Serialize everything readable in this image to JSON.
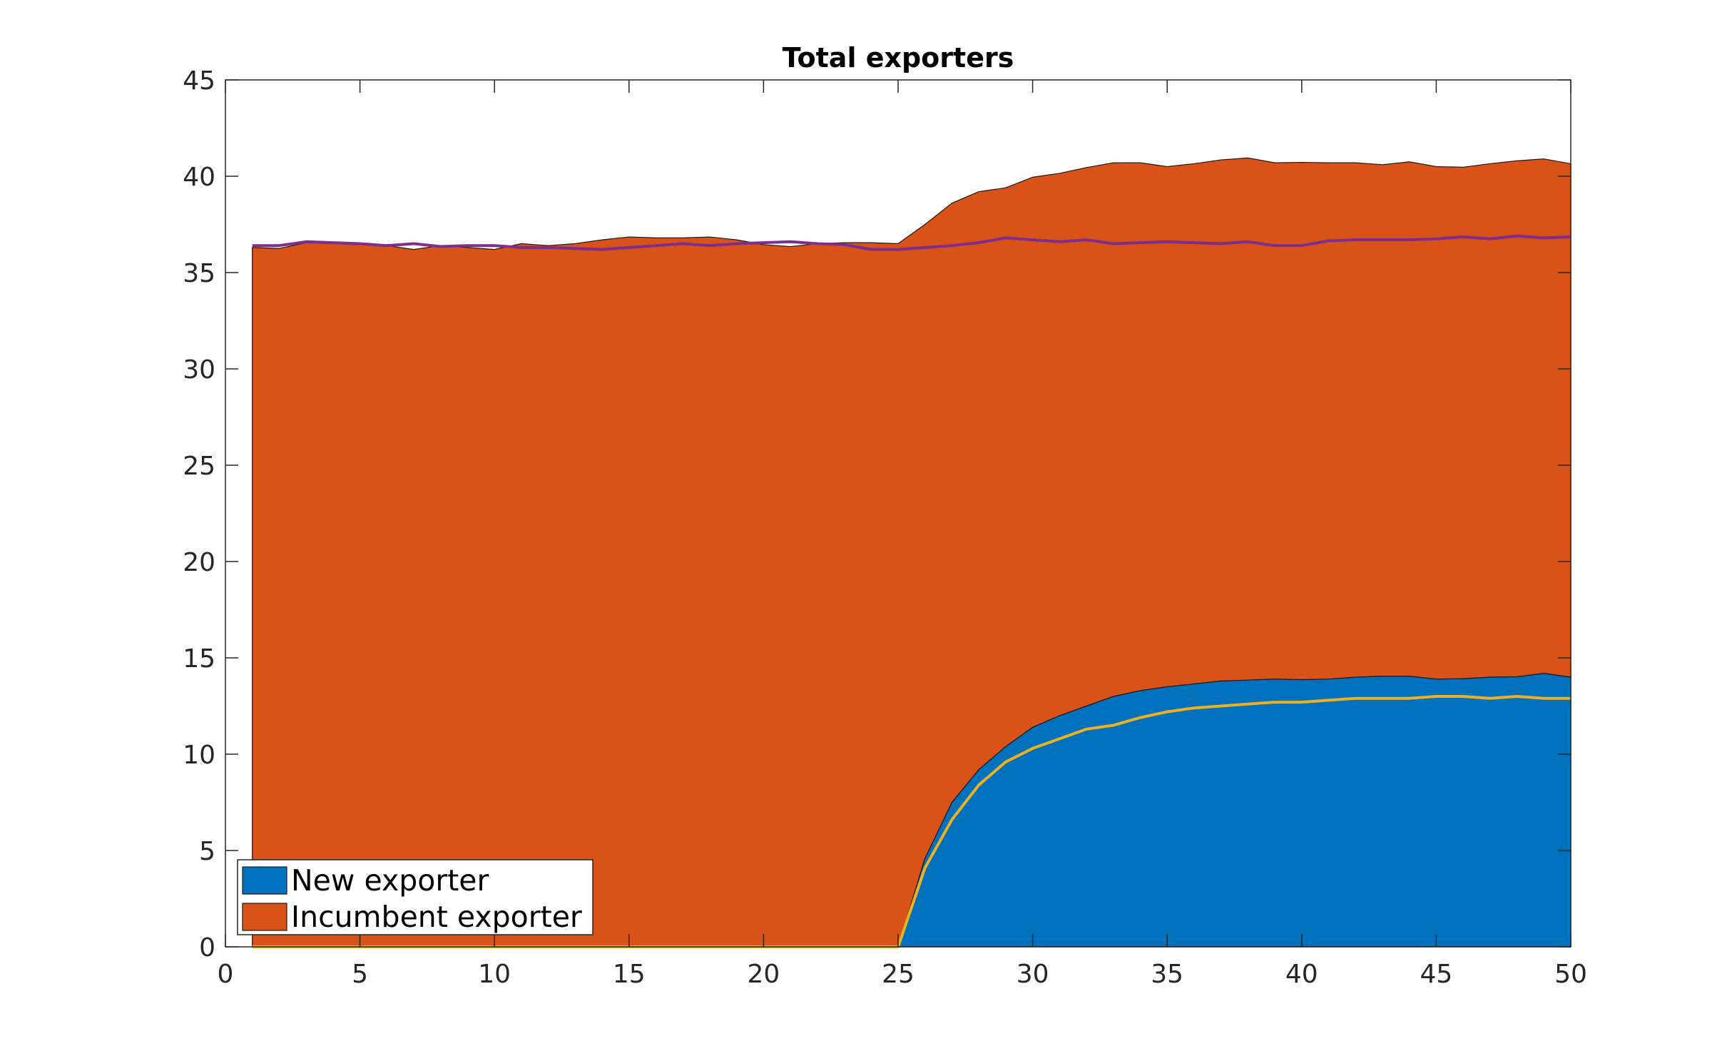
{
  "chart_data": {
    "type": "area",
    "title": "Total exporters",
    "xlabel": "",
    "ylabel": "",
    "xlim": [
      0,
      50
    ],
    "ylim": [
      0,
      45
    ],
    "xticks": [
      0,
      5,
      10,
      15,
      20,
      25,
      30,
      35,
      40,
      45,
      50
    ],
    "yticks": [
      0,
      5,
      10,
      15,
      20,
      25,
      30,
      35,
      40,
      45
    ],
    "grid": false,
    "legend_position": "bottom-left",
    "stacked": true,
    "x": [
      1,
      2,
      3,
      4,
      5,
      6,
      7,
      8,
      9,
      10,
      11,
      12,
      13,
      14,
      15,
      16,
      17,
      18,
      19,
      20,
      21,
      22,
      23,
      24,
      25,
      26,
      27,
      28,
      29,
      30,
      31,
      32,
      33,
      34,
      35,
      36,
      37,
      38,
      39,
      40,
      41,
      42,
      43,
      44,
      45,
      46,
      47,
      48,
      49,
      50
    ],
    "series": [
      {
        "name": "New exporter",
        "color": "#0072BD",
        "values": [
          0,
          0,
          0,
          0,
          0,
          0,
          0,
          0,
          0,
          0,
          0,
          0,
          0,
          0,
          0,
          0,
          0,
          0,
          0,
          0,
          0,
          0,
          0,
          0,
          0,
          4.6,
          7.5,
          9.2,
          10.4,
          11.4,
          12.0,
          12.5,
          13.0,
          13.3,
          13.5,
          13.65,
          13.8,
          13.85,
          13.9,
          13.87,
          13.9,
          14.0,
          14.05,
          14.05,
          13.9,
          13.92,
          14.0,
          14.02,
          14.2,
          14.0
        ]
      },
      {
        "name": "Incumbent exporter",
        "color": "#D95319",
        "values": [
          36.3,
          36.25,
          36.55,
          36.5,
          36.45,
          36.4,
          36.2,
          36.4,
          36.3,
          36.2,
          36.5,
          36.4,
          36.5,
          36.7,
          36.85,
          36.8,
          36.8,
          36.85,
          36.7,
          36.45,
          36.35,
          36.5,
          36.55,
          36.55,
          36.5,
          32.9,
          31.1,
          30.0,
          29.0,
          28.55,
          28.15,
          27.95,
          27.7,
          27.4,
          27.0,
          27.0,
          27.05,
          27.1,
          26.8,
          26.85,
          26.8,
          26.7,
          26.55,
          26.7,
          26.6,
          26.55,
          26.65,
          26.78,
          26.7,
          26.65
        ]
      }
    ],
    "lines": [
      {
        "color": "#7E2F8E",
        "values": [
          36.4,
          36.4,
          36.6,
          36.55,
          36.5,
          36.4,
          36.5,
          36.35,
          36.4,
          36.4,
          36.3,
          36.3,
          36.25,
          36.2,
          36.3,
          36.4,
          36.5,
          36.4,
          36.5,
          36.55,
          36.6,
          36.5,
          36.45,
          36.2,
          36.2,
          36.3,
          36.4,
          36.55,
          36.8,
          36.7,
          36.6,
          36.7,
          36.5,
          36.55,
          36.6,
          36.55,
          36.5,
          36.6,
          36.4,
          36.4,
          36.65,
          36.7,
          36.7,
          36.7,
          36.75,
          36.85,
          36.75,
          36.9,
          36.8,
          36.85
        ]
      },
      {
        "color": "#EDB120",
        "values": [
          0,
          0,
          0,
          0,
          0,
          0,
          0,
          0,
          0,
          0,
          0,
          0,
          0,
          0,
          0,
          0,
          0,
          0,
          0,
          0,
          0,
          0,
          0,
          0,
          0,
          4.1,
          6.6,
          8.4,
          9.6,
          10.3,
          10.8,
          11.3,
          11.5,
          11.9,
          12.2,
          12.4,
          12.5,
          12.6,
          12.7,
          12.7,
          12.8,
          12.9,
          12.9,
          12.9,
          13.0,
          13.0,
          12.9,
          13.0,
          12.9,
          12.9
        ]
      }
    ]
  }
}
